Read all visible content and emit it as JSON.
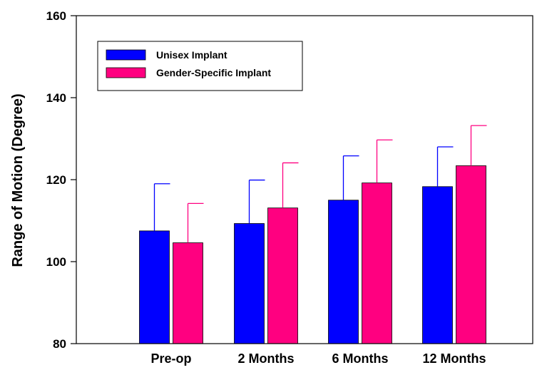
{
  "chart_data": {
    "type": "bar",
    "categories": [
      "Pre-op",
      "2 Months",
      "6 Months",
      "12 Months"
    ],
    "series": [
      {
        "name": "Unisex Implant",
        "color": "#0000ff",
        "values": [
          107.5,
          109.3,
          115.0,
          118.3
        ],
        "errors": [
          11.5,
          10.6,
          10.8,
          9.7
        ]
      },
      {
        "name": "Gender-Specific Implant",
        "color": "#ff0080",
        "values": [
          104.6,
          113.1,
          119.2,
          123.4
        ],
        "errors": [
          9.6,
          11.0,
          10.5,
          9.8
        ]
      }
    ],
    "title": "",
    "xlabel": "",
    "ylabel": "Range of Motion (Degree)",
    "ylim": [
      80,
      160
    ],
    "yticks": [
      80,
      100,
      120,
      140,
      160
    ],
    "grid": false,
    "legend_position": "top-left"
  }
}
